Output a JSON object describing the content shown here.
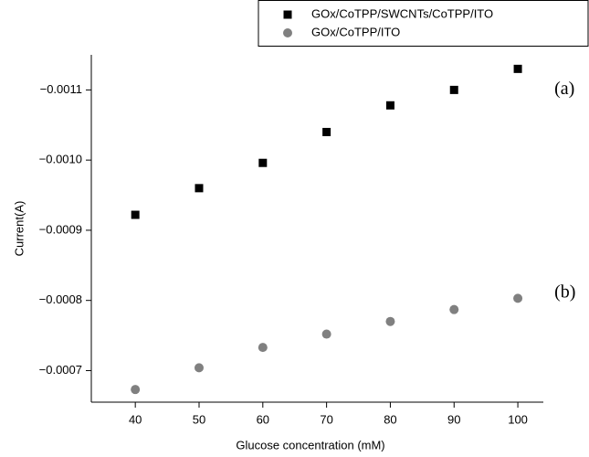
{
  "chart_data": {
    "type": "scatter",
    "xlabel": "Glucose concentration (mM)",
    "ylabel": "Current(A)",
    "x": [
      40,
      50,
      60,
      70,
      80,
      90,
      100
    ],
    "series": [
      {
        "name": "GOx/CoTPP/SWCNTs/CoTPP/ITO",
        "color": "#000000",
        "marker": "square",
        "values": [
          -0.000922,
          -0.00096,
          -0.000996,
          -0.00104,
          -0.001078,
          -0.0011,
          -0.00113
        ]
      },
      {
        "name": "GOx/CoTPP/ITO",
        "color": "#808080",
        "marker": "circle",
        "values": [
          -0.000673,
          -0.000704,
          -0.000733,
          -0.000752,
          -0.00077,
          -0.000787,
          -0.000803
        ]
      }
    ],
    "annotations": [
      {
        "text": "(a)",
        "x": 100,
        "y": -0.0011
      },
      {
        "text": "(b)",
        "x": 100,
        "y": -0.00081
      }
    ],
    "xlim": [
      33.1,
      104
    ],
    "xticks": [
      40,
      50,
      60,
      70,
      80,
      90,
      100
    ],
    "ylim": [
      -0.000655,
      -0.00115
    ],
    "yticks": [
      {
        "value": -0.0011,
        "label": "−0.0011"
      },
      {
        "value": -0.001,
        "label": "−0.0010"
      },
      {
        "value": -0.0009,
        "label": "−0.0009"
      },
      {
        "value": -0.0008,
        "label": "−0.0008"
      },
      {
        "value": -0.0007,
        "label": "−0.0007"
      }
    ],
    "legend": "top-right"
  }
}
